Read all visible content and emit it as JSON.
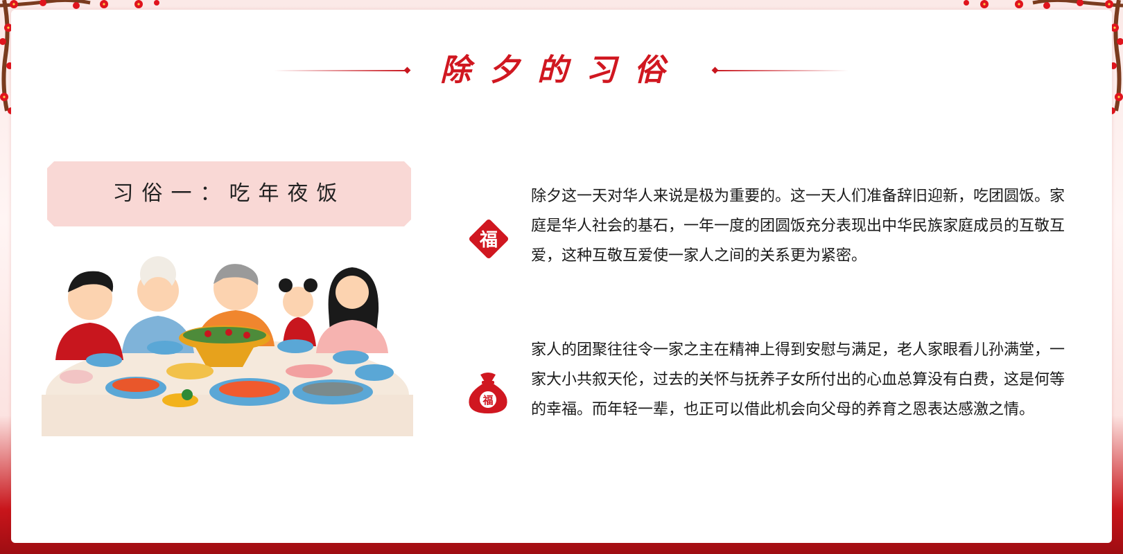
{
  "page": {
    "title": "除夕的习俗",
    "accent_color": "#c8161e"
  },
  "custom_label": "习俗一：吃年夜饭",
  "paragraphs": [
    "除夕这一天对华人来说是极为重要的。这一天人们准备辞旧迎新，吃团圆饭。家庭是华人社会的基石，一年一度的团圆饭充分表现出中华民族家庭成员的互敬互爱，这种互敬互爱使一家人之间的关系更为紧密。",
    "家人的团聚往往令一家之主在精神上得到安慰与满足，老人家眼看儿孙满堂，一家大小共叙天伦，过去的关怀与抚养子女所付出的心血总算没有白费，这是何等的幸福。而年轻一辈，也正可以借此机会向父母的养育之恩表达感激之情。"
  ],
  "icons": {
    "fu_diamond": "福",
    "lucky_bag": "福"
  }
}
